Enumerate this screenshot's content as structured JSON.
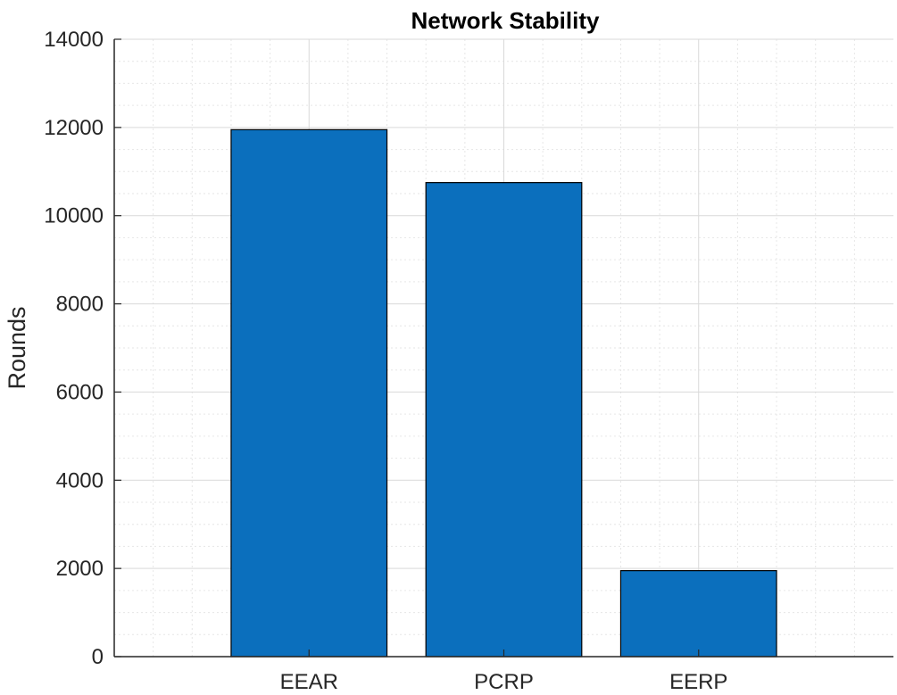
{
  "chart_data": {
    "type": "bar",
    "title": "Network Stability",
    "xlabel": "",
    "ylabel": "Rounds",
    "categories": [
      "EEAR",
      "PCRP",
      "EERP"
    ],
    "values": [
      11950,
      10750,
      1950
    ],
    "ylim": [
      0,
      14000
    ],
    "yticks": [
      0,
      2000,
      4000,
      6000,
      8000,
      10000,
      12000,
      14000
    ],
    "grid": true,
    "minor_grid": true,
    "legend": "none",
    "colors": {
      "bar": "#0b6fbd",
      "bar_edge": "#000000",
      "grid": "#d9d9d9",
      "axis": "#262626"
    }
  }
}
